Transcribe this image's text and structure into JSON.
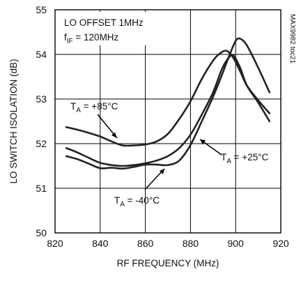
{
  "chart_data": {
    "type": "line",
    "xlabel": "RF FREQUENCY (MHz)",
    "ylabel": "LO SWITCH ISOLATION (dB)",
    "xlim": [
      820,
      920
    ],
    "ylim": [
      50,
      55
    ],
    "x_ticks": [
      "820",
      "840",
      "860",
      "880",
      "900",
      "920"
    ],
    "y_ticks": [
      "50",
      "51",
      "52",
      "53",
      "54",
      "55"
    ],
    "grid": true,
    "side_code": "MAX9982 toc21",
    "conditions": {
      "line1": "LO OFFSET 1MHz",
      "line2_main": "f",
      "line2_sub": "IF",
      "line2_rest": " = 120MHz"
    },
    "series": [
      {
        "name": "TA = +85°C",
        "label_main": "T",
        "label_sub": "A",
        "label_rest": " = +85°C",
        "points": [
          [
            825,
            52.37
          ],
          [
            830,
            52.31
          ],
          [
            835,
            52.24
          ],
          [
            840,
            52.16
          ],
          [
            845,
            52.05
          ],
          [
            850,
            51.96
          ],
          [
            855,
            51.96
          ],
          [
            860,
            51.98
          ],
          [
            865,
            52.05
          ],
          [
            870,
            52.22
          ],
          [
            875,
            52.55
          ],
          [
            880,
            52.95
          ],
          [
            885,
            53.45
          ],
          [
            890,
            53.86
          ],
          [
            893,
            54.02
          ],
          [
            896,
            54.08
          ],
          [
            899,
            53.92
          ],
          [
            902,
            53.62
          ],
          [
            905,
            53.3
          ],
          [
            910,
            52.97
          ],
          [
            915,
            52.68
          ]
        ]
      },
      {
        "name": "TA = +25°C",
        "label_main": "T",
        "label_sub": "A",
        "label_rest": " = +25°C",
        "points": [
          [
            825,
            51.9
          ],
          [
            830,
            51.8
          ],
          [
            835,
            51.68
          ],
          [
            840,
            51.57
          ],
          [
            845,
            51.52
          ],
          [
            850,
            51.5
          ],
          [
            855,
            51.52
          ],
          [
            860,
            51.56
          ],
          [
            865,
            51.62
          ],
          [
            870,
            51.72
          ],
          [
            875,
            51.9
          ],
          [
            880,
            52.2
          ],
          [
            885,
            52.65
          ],
          [
            890,
            53.15
          ],
          [
            894,
            53.68
          ],
          [
            897,
            53.93
          ],
          [
            899,
            53.98
          ],
          [
            902,
            53.7
          ],
          [
            905,
            53.3
          ],
          [
            910,
            52.92
          ],
          [
            915,
            52.5
          ]
        ]
      },
      {
        "name": "TA = -40°C",
        "label_main": "T",
        "label_sub": "A",
        "label_rest": " = -40°C",
        "points": [
          [
            825,
            51.72
          ],
          [
            830,
            51.65
          ],
          [
            835,
            51.55
          ],
          [
            840,
            51.45
          ],
          [
            845,
            51.46
          ],
          [
            850,
            51.44
          ],
          [
            855,
            51.48
          ],
          [
            860,
            51.53
          ],
          [
            865,
            51.53
          ],
          [
            870,
            51.52
          ],
          [
            875,
            51.62
          ],
          [
            880,
            51.97
          ],
          [
            885,
            52.5
          ],
          [
            890,
            53.05
          ],
          [
            894,
            53.55
          ],
          [
            897,
            53.95
          ],
          [
            900,
            54.3
          ],
          [
            902,
            54.35
          ],
          [
            905,
            54.2
          ],
          [
            910,
            53.7
          ],
          [
            915,
            53.15
          ]
        ]
      }
    ]
  }
}
